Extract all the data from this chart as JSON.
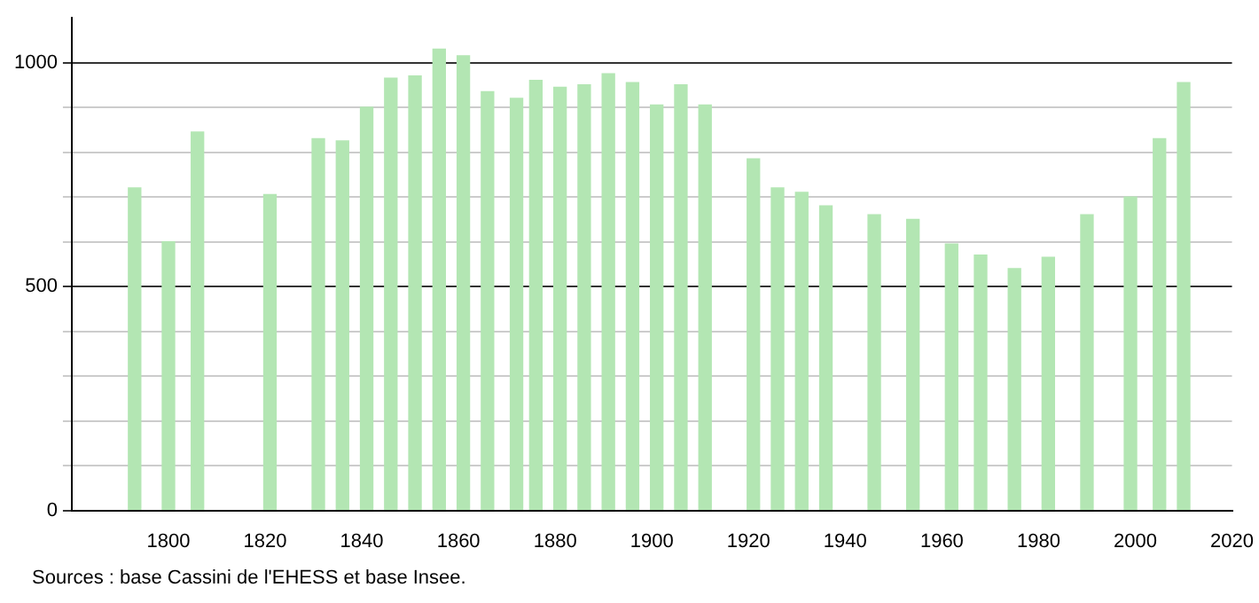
{
  "chart_data": {
    "type": "bar",
    "x": [
      1793,
      1800,
      1806,
      1821,
      1831,
      1836,
      1841,
      1846,
      1851,
      1856,
      1861,
      1866,
      1872,
      1876,
      1881,
      1886,
      1891,
      1896,
      1901,
      1906,
      1911,
      1921,
      1926,
      1931,
      1936,
      1946,
      1954,
      1962,
      1968,
      1975,
      1982,
      1990,
      1999,
      2005,
      2010
    ],
    "values": [
      720,
      600,
      845,
      705,
      830,
      825,
      900,
      965,
      970,
      1030,
      1015,
      935,
      920,
      960,
      945,
      950,
      975,
      955,
      905,
      950,
      905,
      785,
      720,
      710,
      680,
      660,
      650,
      595,
      570,
      540,
      565,
      660,
      700,
      830,
      955
    ],
    "color": "#b3e6b3",
    "xlim": [
      1780,
      2020
    ],
    "xticks": [
      1800,
      1820,
      1840,
      1860,
      1880,
      1900,
      1920,
      1940,
      1960,
      1980,
      2000,
      2020
    ],
    "ylim": [
      0,
      1100
    ],
    "yticks": [
      0,
      {
        "value": 100,
        "label": null
      },
      {
        "value": 200,
        "label": null
      },
      {
        "value": 300,
        "label": null
      },
      {
        "value": 400,
        "label": null
      },
      500,
      {
        "value": 600,
        "label": null
      },
      {
        "value": 700,
        "label": null
      },
      {
        "value": 800,
        "label": null
      },
      {
        "value": 900,
        "label": null
      },
      1000
    ],
    "grid": "y",
    "legend": false,
    "annotations": [
      "Sources : base Cassini de l'EHESS et base Insee."
    ]
  }
}
